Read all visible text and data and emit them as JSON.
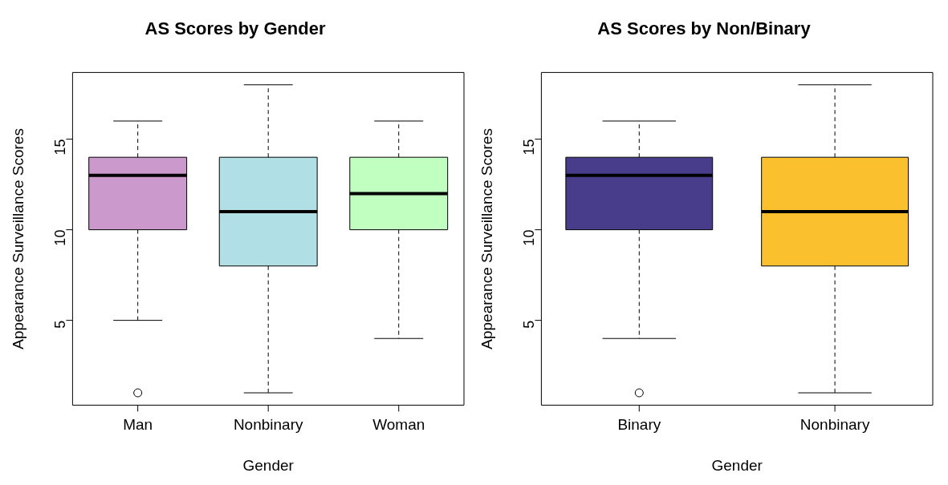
{
  "chart_data": [
    {
      "type": "box",
      "title": "AS Scores by Gender",
      "xlabel": "Gender",
      "ylabel": "Appearance Surveillance Scores",
      "categories": [
        "Man",
        "Nonbinary",
        "Woman"
      ],
      "colors": [
        "#cc99cc",
        "#b0dfe5",
        "#c1ffc1"
      ],
      "boxes": [
        {
          "low": 5,
          "q1": 10,
          "median": 13,
          "q3": 14,
          "high": 16,
          "outliers": [
            1
          ]
        },
        {
          "low": 1,
          "q1": 8,
          "median": 11,
          "q3": 14,
          "high": 18
        },
        {
          "low": 4,
          "q1": 10,
          "median": 12,
          "q3": 14,
          "high": 16
        }
      ],
      "ylim": [
        0.32,
        18.68
      ],
      "yticks": [
        5,
        10,
        15
      ]
    },
    {
      "type": "box",
      "title": "AS Scores by Non/Binary",
      "xlabel": "Gender",
      "ylabel": "Appearance Surveillance Scores",
      "categories": [
        "Binary",
        "Nonbinary"
      ],
      "colors": [
        "#483d8b",
        "#fbc02d"
      ],
      "boxes": [
        {
          "low": 4,
          "q1": 10,
          "median": 13,
          "q3": 14,
          "high": 16,
          "outliers": [
            1
          ]
        },
        {
          "low": 1,
          "q1": 8,
          "median": 11,
          "q3": 14,
          "high": 18
        }
      ],
      "ylim": [
        0.32,
        18.68
      ],
      "yticks": [
        5,
        10,
        15
      ]
    }
  ]
}
